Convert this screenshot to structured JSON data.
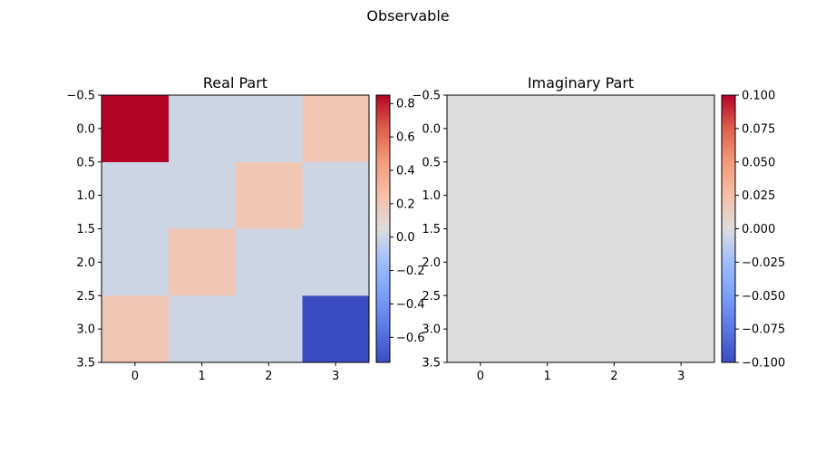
{
  "figure": {
    "suptitle": "Observable"
  },
  "chart_data": [
    {
      "type": "heatmap",
      "title": "Real Part",
      "xlabel": "",
      "ylabel": "",
      "colormap": "coolwarm",
      "x_ticks": [
        "0",
        "1",
        "2",
        "3"
      ],
      "y_ticks": [
        "−0.5",
        "0.0",
        "0.5",
        "1.0",
        "1.5",
        "2.0",
        "2.5",
        "3.0",
        "3.5"
      ],
      "colorbar_ticks": [
        "−0.6",
        "−0.4",
        "−0.2",
        "0.0",
        "0.2",
        "0.4",
        "0.6",
        "0.8"
      ],
      "vmin": -0.75,
      "vmax": 0.85,
      "values": [
        [
          0.85,
          0.0,
          0.0,
          0.2
        ],
        [
          0.0,
          0.0,
          0.2,
          0.0
        ],
        [
          0.0,
          0.2,
          0.0,
          0.0
        ],
        [
          0.2,
          0.0,
          0.0,
          -0.75
        ]
      ]
    },
    {
      "type": "heatmap",
      "title": "Imaginary Part",
      "xlabel": "",
      "ylabel": "",
      "colormap": "coolwarm",
      "x_ticks": [
        "0",
        "1",
        "2",
        "3"
      ],
      "y_ticks": [
        "−0.5",
        "0.0",
        "0.5",
        "1.0",
        "1.5",
        "2.0",
        "2.5",
        "3.0",
        "3.5"
      ],
      "colorbar_ticks": [
        "−0.100",
        "−0.075",
        "−0.050",
        "−0.025",
        "0.000",
        "0.025",
        "0.050",
        "0.075",
        "0.100"
      ],
      "vmin": -0.1,
      "vmax": 0.1,
      "values": [
        [
          0.0,
          0.0,
          0.0,
          0.0
        ],
        [
          0.0,
          0.0,
          0.0,
          0.0
        ],
        [
          0.0,
          0.0,
          0.0,
          0.0
        ],
        [
          0.0,
          0.0,
          0.0,
          0.0
        ]
      ]
    }
  ]
}
